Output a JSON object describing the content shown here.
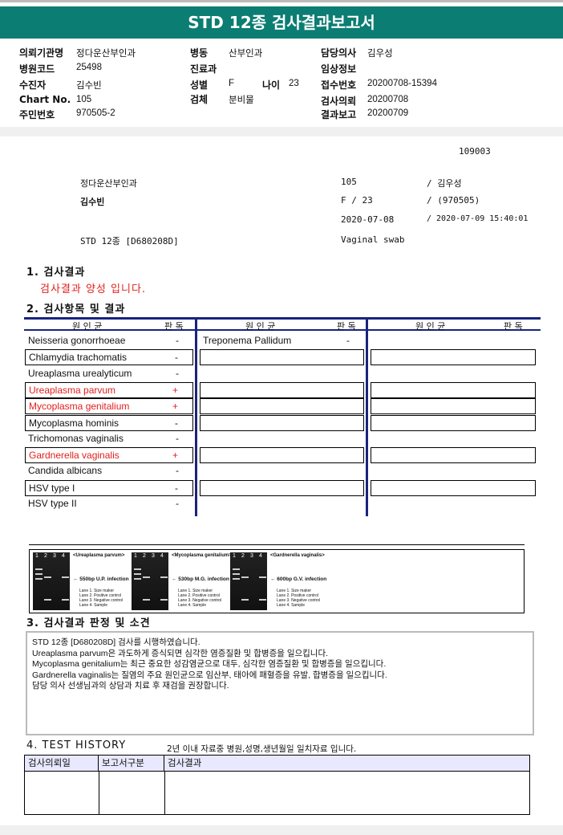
{
  "title": "STD 12종 검사결과보고서",
  "header": {
    "fields": [
      {
        "label": "의뢰기관명",
        "value": "정다운산부인과"
      },
      {
        "label": "병원코드",
        "value": "25498"
      },
      {
        "label": "수진자",
        "value": "김수빈"
      },
      {
        "label": "Chart No.",
        "value": "105"
      },
      {
        "label": "주민번호",
        "value": "970505-2"
      },
      {
        "label": "병동",
        "value": "산부인과"
      },
      {
        "label": "진료과",
        "value": ""
      },
      {
        "label": "성별",
        "value": "F"
      },
      {
        "label": "검체",
        "value": "분비물"
      },
      {
        "label": "나이",
        "value": "23"
      },
      {
        "label": "담당의사",
        "value": "김우성"
      },
      {
        "label": "임상정보",
        "value": ""
      },
      {
        "label": "접수번호",
        "value": "20200708-15394"
      },
      {
        "label": "검사의뢰",
        "value": "20200708"
      },
      {
        "label": "결과보고",
        "value": "20200709"
      }
    ]
  },
  "summary": {
    "code": "109003",
    "hospital": "정다운산부인과",
    "patient": "김수빈",
    "test": "STD 12종 [D680208D]",
    "chart": "105",
    "doctor": "/ 김우성",
    "sex": "F  /  23",
    "birth": "/ (970505)",
    "date1": "2020-07-08",
    "date2": "/ 2020-07-09 15:40:01",
    "specimen": "Vaginal swab"
  },
  "section1": {
    "title": "1. 검사결과",
    "result": "검사결과 양성 입니다."
  },
  "section2": {
    "title": "2. 검사항목 및 결과",
    "col_pathogen": "원 인 균",
    "col_result": "판 독",
    "col1": [
      {
        "name": "Neisseria gonorrhoeae",
        "result": "-",
        "positive": false
      },
      {
        "name": "Chlamydia trachomatis",
        "result": "-",
        "positive": false
      },
      {
        "name": "Ureaplasma urealyticum",
        "result": "-",
        "positive": false
      },
      {
        "name": "Ureaplasma parvum",
        "result": "+",
        "positive": true
      },
      {
        "name": "Mycoplasma genitalium",
        "result": "+",
        "positive": true
      },
      {
        "name": "Mycoplasma hominis",
        "result": "-",
        "positive": false
      },
      {
        "name": "Trichomonas vaginalis",
        "result": "-",
        "positive": false
      },
      {
        "name": "Gardnerella vaginalis",
        "result": "+",
        "positive": true
      },
      {
        "name": "Candida albicans",
        "result": "-",
        "positive": false
      },
      {
        "name": "HSV type I",
        "result": "-",
        "positive": false
      },
      {
        "name": "HSV type II",
        "result": "-",
        "positive": false
      }
    ],
    "col2": [
      {
        "name": "Treponema Pallidum",
        "result": "-"
      }
    ]
  },
  "gel": [
    {
      "title": "<Ureaplasma parvum>",
      "label": "← 550bp U.P. infection"
    },
    {
      "title": "<Mycoplasma genitalium>",
      "label": "← 530bp M.G. infection"
    },
    {
      "title": "<Gardnerella vaginalis>",
      "label": "← 600bp G.V. infection"
    }
  ],
  "gel_lanes": [
    "1",
    "2",
    "3",
    "4"
  ],
  "gel_legend": [
    "Lane 1. Size maker",
    "Lane 2. Positive control",
    "Lane 3. Negative control",
    "Lane 4. Sample"
  ],
  "section3": {
    "title": "3. 검사결과 판정 및 소견",
    "lines": [
      "STD 12종 [D680208D] 검사를 시행하였습니다.",
      "Ureaplasma parvum은  과도하게 증식되면 심각한 염증질환 및 합병증을 일으킵니다.",
      "Mycoplasma genitalium는 최근 중요한 성감염균으로 대두, 심각한 염증질환 및 합병증을 일으킵니다.",
      "Gardnerella vaginalis는 질염의 주요 원인균으로 임산부, 태아에 패혈증을 유발, 합병증을 일으킵니다.",
      "담당 의사 선생님과의 상담과 치료 후 재검을 권장합니다."
    ]
  },
  "section4": {
    "title": "4. TEST HISTORY",
    "note": "2년 이내 자료중 병원,성명,생년월일 일치자료 입니다.",
    "columns": [
      "검사의뢰일",
      "보고서구분",
      "검사결과"
    ]
  },
  "colors": {
    "banner": "#0b7d73",
    "positive": "#e0201c",
    "table_rule": "#1a237e"
  }
}
